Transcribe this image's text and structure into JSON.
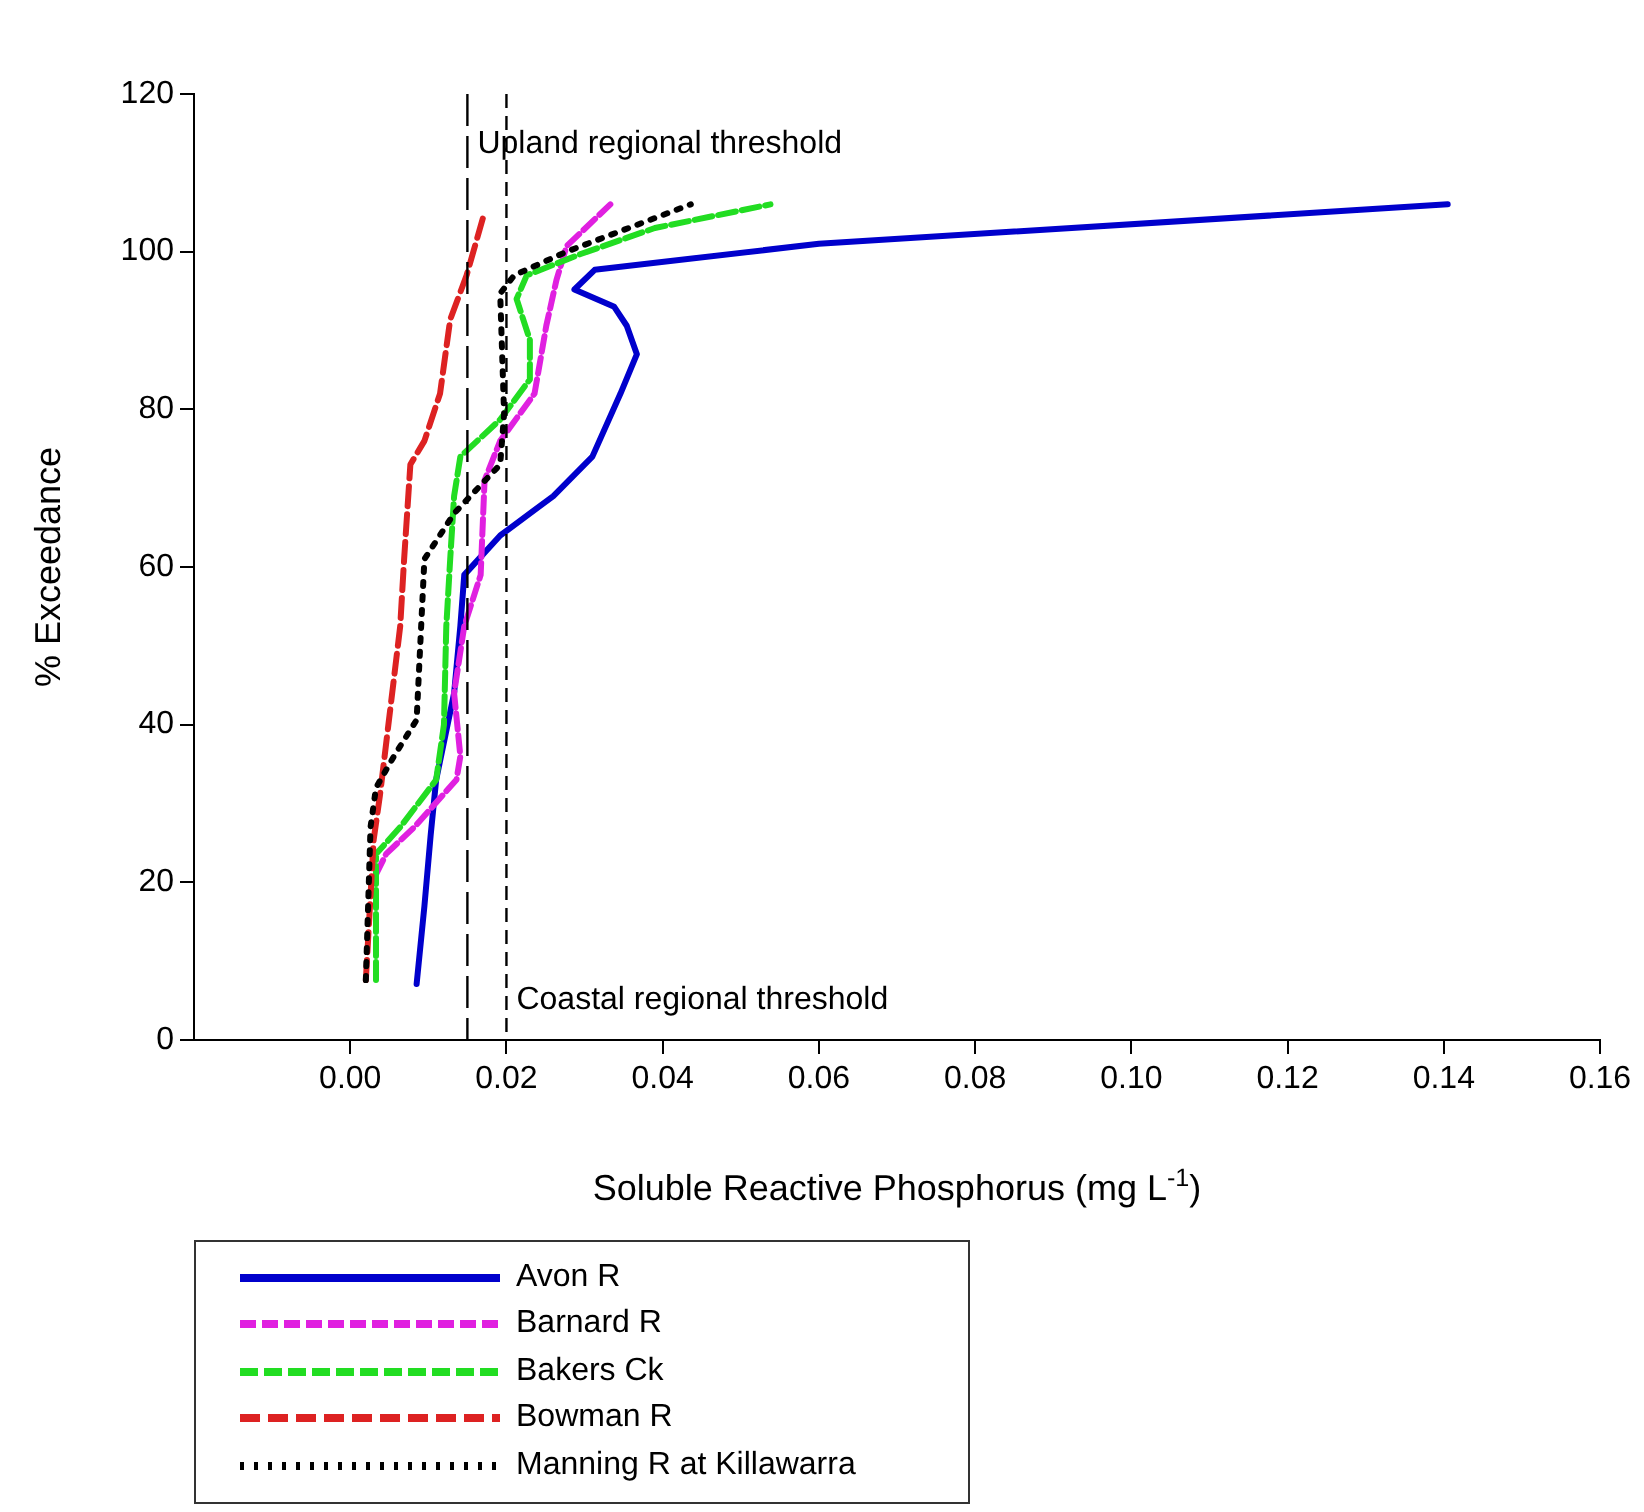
{
  "chart_data": {
    "type": "line",
    "xlabel": "Soluble Reactive Phosphorus (mg L$^{-1}$)",
    "ylabel": "% Exceedance",
    "xlim": [
      -0.02,
      0.16
    ],
    "xticks": [
      {
        "value": 0,
        "label": "0.00"
      },
      {
        "value": 0.02,
        "label": "0.02"
      },
      {
        "value": 0.04,
        "label": "0.04"
      },
      {
        "value": 0.06,
        "label": "0.06"
      },
      {
        "value": 0.08,
        "label": "0.08"
      },
      {
        "value": 0.1,
        "label": "0.10"
      },
      {
        "value": 0.12,
        "label": "0.12"
      },
      {
        "value": 0.14,
        "label": "0.14"
      },
      {
        "value": 0.16,
        "label": "0.16"
      }
    ],
    "ylim": [
      0,
      120
    ],
    "yticks": [
      0,
      20,
      40,
      60,
      80,
      100,
      120
    ],
    "grid": false,
    "legend": "bottom left",
    "marker": "none",
    "series": [
      {
        "name": "Avon R",
        "color": "#0000cc",
        "line_style": "solid",
        "x": [
          0.0085,
          0.0095,
          0.0103,
          0.011,
          0.0133,
          0.0141,
          0.0146,
          0.0192,
          0.026,
          0.031,
          0.0346,
          0.0367,
          0.0354,
          0.0338,
          0.0287,
          0.0313,
          0.06,
          0.1405
        ],
        "values": [
          7.1,
          17,
          26,
          33,
          44,
          52.5,
          59,
          64,
          69,
          74,
          82,
          87,
          90.6,
          93,
          95.2,
          97.7,
          101,
          106
        ]
      },
      {
        "name": "Barnard R",
        "color": "#e020e0",
        "line_style": "dashed",
        "x": [
          0.0033,
          0.0046,
          0.0082,
          0.0136,
          0.0141,
          0.0133,
          0.0146,
          0.0167,
          0.0172,
          0.0192,
          0.0236,
          0.0251,
          0.0264,
          0.0277,
          0.0333
        ],
        "values": [
          21,
          23.6,
          27,
          33,
          36,
          44,
          52.5,
          59,
          71,
          76,
          82,
          90.6,
          96.4,
          100.7,
          106
        ]
      },
      {
        "name": "Bakers Ck",
        "color": "#22dd22",
        "line_style": "dashed",
        "x": [
          0.0033,
          0.0033,
          0.0064,
          0.011,
          0.012,
          0.0123,
          0.0128,
          0.0133,
          0.0141,
          0.0192,
          0.023,
          0.023,
          0.0213,
          0.0226,
          0.0295,
          0.039,
          0.0538
        ],
        "values": [
          7.6,
          23.6,
          27,
          33,
          40,
          52.5,
          61,
          69,
          74,
          78.7,
          83.8,
          88.8,
          94,
          97,
          99.7,
          103,
          106
        ]
      },
      {
        "name": "Bowman R",
        "color": "#dd2222",
        "line_style": "dashed",
        "x": [
          0.002,
          0.003,
          0.0038,
          0.0064,
          0.0069,
          0.0077,
          0.0095,
          0.0115,
          0.0128,
          0.0149,
          0.0172
        ],
        "values": [
          7.6,
          25.4,
          31,
          52.5,
          61,
          73,
          76,
          82,
          91.4,
          97,
          105
        ]
      },
      {
        "name": "Manning R at Killawarra",
        "color": "#000000",
        "line_style": "dotted",
        "x": [
          0.002,
          0.0026,
          0.0033,
          0.0056,
          0.0085,
          0.0095,
          0.0133,
          0.0192,
          0.0197,
          0.0192,
          0.021,
          0.0277,
          0.0436
        ],
        "values": [
          7.6,
          27,
          32,
          36,
          40.6,
          61,
          66.8,
          73,
          79.4,
          94.7,
          97,
          100,
          106
        ]
      }
    ],
    "ref_lines": [
      {
        "axis": "x",
        "value": 0.015,
        "label": "Upland regional threshold",
        "line_style": "dashed"
      },
      {
        "axis": "x",
        "value": 0.02,
        "label": "Coastal regional threshold",
        "line_style": "dashed"
      }
    ]
  }
}
